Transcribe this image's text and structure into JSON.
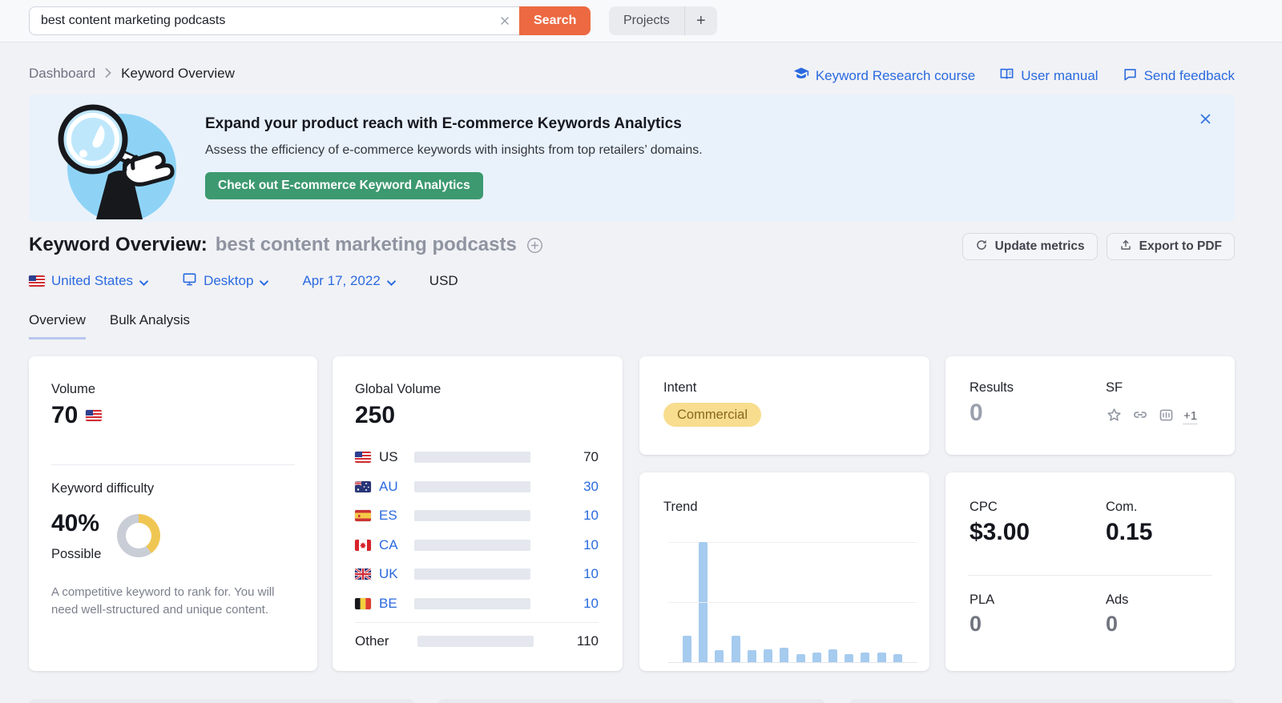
{
  "colors": {
    "accent_blue": "#2a6adf",
    "search_orange": "#ec6942",
    "cta_green": "#3d9970",
    "banner_bg": "#e9f2fb",
    "kd_yellow": "#f0c653",
    "kd_gray": "#c9cdd6",
    "bar_track": "#e4e7ee",
    "trend_bar": "#a5cbef",
    "intent_badge_bg": "#f8dd8f",
    "intent_badge_text": "#8a671c"
  },
  "topbar": {
    "search": {
      "value": "best content marketing podcasts",
      "button_label": "Search"
    },
    "projects_label": "Projects",
    "add_label": "+"
  },
  "breadcrumb": {
    "parent": "Dashboard",
    "current": "Keyword Overview"
  },
  "quick_links": {
    "course": "Keyword Research course",
    "manual": "User manual",
    "feedback": "Send feedback"
  },
  "banner": {
    "title": "Expand your product reach with E-commerce Keywords Analytics",
    "subtitle": "Assess the efficiency of e-commerce keywords with insights from top retailers’ domains.",
    "cta": "Check out E-commerce Keyword Analytics"
  },
  "page_header": {
    "title": "Keyword Overview:",
    "keyword": "best content marketing podcasts",
    "update_button": "Update metrics",
    "export_button": "Export to PDF"
  },
  "filters": {
    "location": "United States",
    "device": "Desktop",
    "date": "Apr 17, 2022",
    "currency": "USD"
  },
  "tabs": [
    {
      "label": "Overview",
      "active": true
    },
    {
      "label": "Bulk Analysis",
      "active": false
    }
  ],
  "cards": {
    "volume": {
      "label": "Volume",
      "value": "70",
      "kd_label": "Keyword difficulty",
      "kd_value": "40%",
      "kd_percent": 40,
      "kd_level": "Possible",
      "kd_description": "A competitive keyword to rank for. You will need well-structured and unique content."
    },
    "global_volume": {
      "label": "Global Volume",
      "total": 250,
      "total_label": "250",
      "rows": [
        {
          "flag": "us",
          "code": "US",
          "value": 70,
          "emphasis": "dark",
          "bar": "#3b72da"
        },
        {
          "flag": "au",
          "code": "AU",
          "value": 30,
          "emphasis": "link",
          "bar": "#57a6f3"
        },
        {
          "flag": "es",
          "code": "ES",
          "value": 10,
          "emphasis": "link",
          "bar": "#57a6f3"
        },
        {
          "flag": "ca",
          "code": "CA",
          "value": 10,
          "emphasis": "link",
          "bar": "#57a6f3"
        },
        {
          "flag": "uk",
          "code": "UK",
          "value": 10,
          "emphasis": "link",
          "bar": "#57a6f3"
        },
        {
          "flag": "be",
          "code": "BE",
          "value": 10,
          "emphasis": "link",
          "bar": "#57a6f3"
        }
      ],
      "other": {
        "label": "Other",
        "value": 110,
        "bar": "#57a6f3"
      }
    },
    "intent": {
      "label": "Intent",
      "badge": "Commercial"
    },
    "results_sf": {
      "results_label": "Results",
      "results_value": "0",
      "sf_label": "SF",
      "sf_more": "+1"
    },
    "trend": {
      "label": "Trend"
    },
    "cpc": {
      "cpc_label": "CPC",
      "cpc_value": "$3.00",
      "com_label": "Com.",
      "com_value": "0.15",
      "pla_label": "PLA",
      "pla_value": "0",
      "ads_label": "Ads",
      "ads_value": "0"
    }
  },
  "chart_data": [
    {
      "id": "trend",
      "type": "bar",
      "title": "Trend",
      "values_pct_of_max": [
        22,
        100,
        10,
        22,
        10,
        11,
        12,
        7,
        8,
        11,
        7,
        8,
        8,
        7
      ],
      "ylim": [
        0,
        100
      ],
      "grid": "two horizontal gridlines, baseline axis",
      "bar_color": "#a5cbef"
    },
    {
      "id": "global_volume",
      "type": "bar",
      "title": "Global Volume",
      "categories": [
        "US",
        "AU",
        "ES",
        "CA",
        "UK",
        "BE",
        "Other"
      ],
      "values": [
        70,
        30,
        10,
        10,
        10,
        10,
        110
      ],
      "total": 250
    }
  ]
}
